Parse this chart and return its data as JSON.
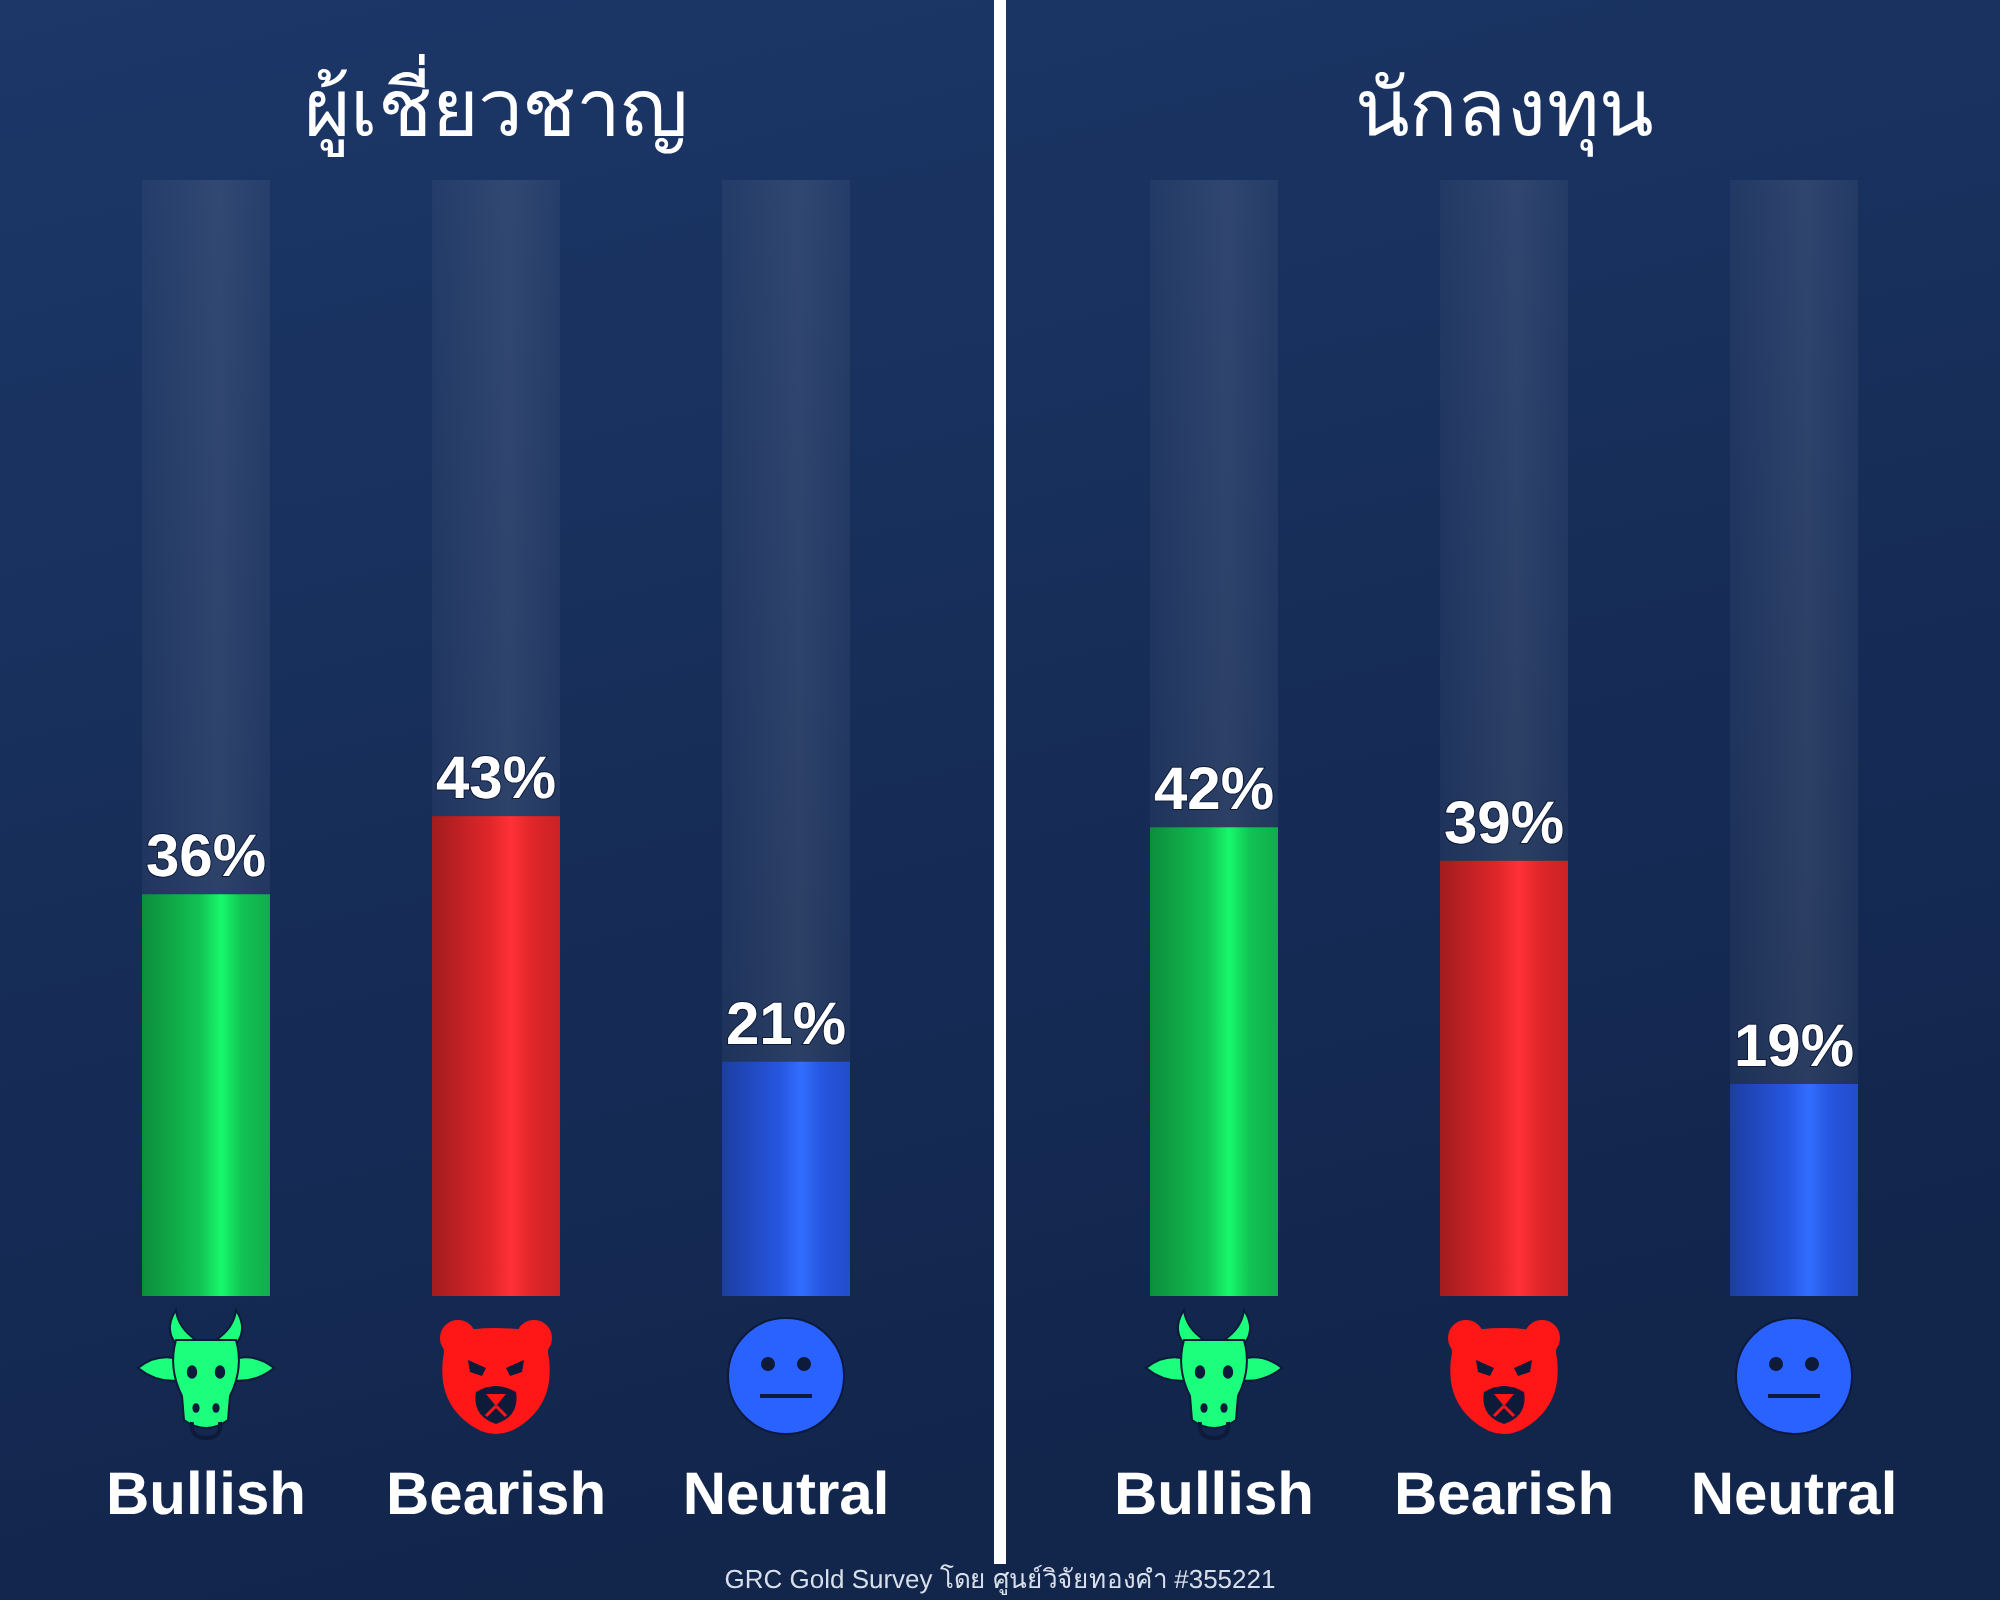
{
  "chart_data": [
    {
      "type": "bar",
      "title": "ผู้เชี่ยวชาญ",
      "categories": [
        "Bullish",
        "Bearish",
        "Neutral"
      ],
      "values": [
        36,
        43,
        21
      ],
      "colors": [
        "#12c253",
        "#e0262a",
        "#2656e0"
      ],
      "value_labels": [
        "36%",
        "43%",
        "21%"
      ],
      "ylim": [
        0,
        100
      ],
      "tick_labels": "x",
      "annotations": [
        "GRC Gold Survey โดย ศูนย์วิจัยทองคำ #355221"
      ]
    },
    {
      "type": "bar",
      "title": "นักลงทุน",
      "categories": [
        "Bullish",
        "Bearish",
        "Neutral"
      ],
      "values": [
        42,
        39,
        19
      ],
      "colors": [
        "#12c253",
        "#e0262a",
        "#2656e0"
      ],
      "value_labels": [
        "42%",
        "39%",
        "19%"
      ],
      "ylim": [
        0,
        100
      ],
      "tick_labels": "x"
    }
  ]
}
